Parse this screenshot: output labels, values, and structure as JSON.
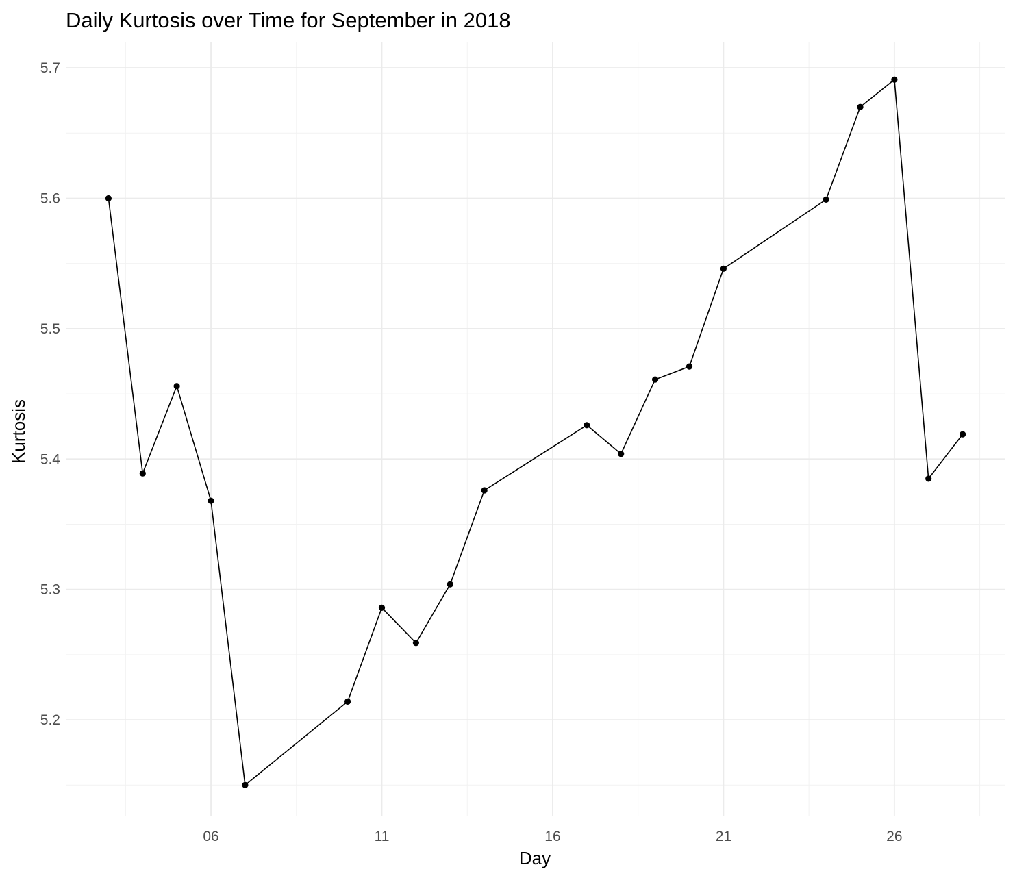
{
  "chart_data": {
    "type": "line",
    "title": "Daily Kurtosis over Time for September in 2018",
    "xlabel": "Day",
    "ylabel": "Kurtosis",
    "x_ticks": [
      "06",
      "11",
      "16",
      "21",
      "26"
    ],
    "x_tick_values": [
      "2018-09-06",
      "2018-09-11",
      "2018-09-16",
      "2018-09-21",
      "2018-09-26"
    ],
    "y_ticks": [
      "5.2",
      "5.3",
      "5.4",
      "5.5",
      "5.6",
      "5.7"
    ],
    "y_tick_values": [
      5.2,
      5.3,
      5.4,
      5.5,
      5.6,
      5.7
    ],
    "xlim": [
      "2018-09-01 18:00",
      "2018-09-29 06:00"
    ],
    "ylim": [
      5.126,
      5.72
    ],
    "grid": true,
    "series": [
      {
        "x": [
          "2018-09-03",
          "2018-09-04",
          "2018-09-05",
          "2018-09-06",
          "2018-09-07",
          "2018-09-10",
          "2018-09-11",
          "2018-09-12",
          "2018-09-13",
          "2018-09-14",
          "2018-09-17",
          "2018-09-18",
          "2018-09-19",
          "2018-09-20",
          "2018-09-21",
          "2018-09-24",
          "2018-09-25",
          "2018-09-26",
          "2018-09-27",
          "2018-09-28"
        ],
        "values": [
          5.6,
          5.389,
          5.456,
          5.368,
          5.15,
          5.214,
          5.286,
          5.259,
          5.304,
          5.376,
          5.426,
          5.404,
          5.461,
          5.471,
          5.546,
          5.599,
          5.67,
          5.691,
          5.385,
          5.419
        ]
      }
    ]
  }
}
